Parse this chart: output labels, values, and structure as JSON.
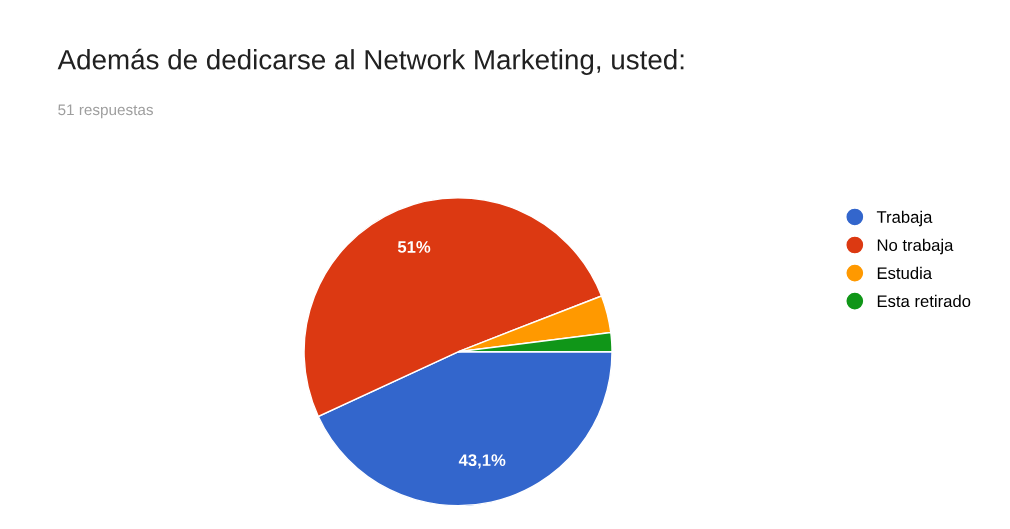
{
  "chart_data": {
    "type": "pie",
    "title": "Además de dedicarse al Network Marketing, usted:",
    "subtitle": "51 respuestas",
    "categories": [
      "Trabaja",
      "No trabaja",
      "Estudia",
      "Esta retirado"
    ],
    "values": [
      43.1,
      51,
      3.9,
      2.0
    ],
    "colors": [
      "#3366cc",
      "#dc3912",
      "#ff9900",
      "#109618"
    ],
    "value_labels": [
      "43,1%",
      "51%",
      null,
      null
    ],
    "legend": "right"
  }
}
